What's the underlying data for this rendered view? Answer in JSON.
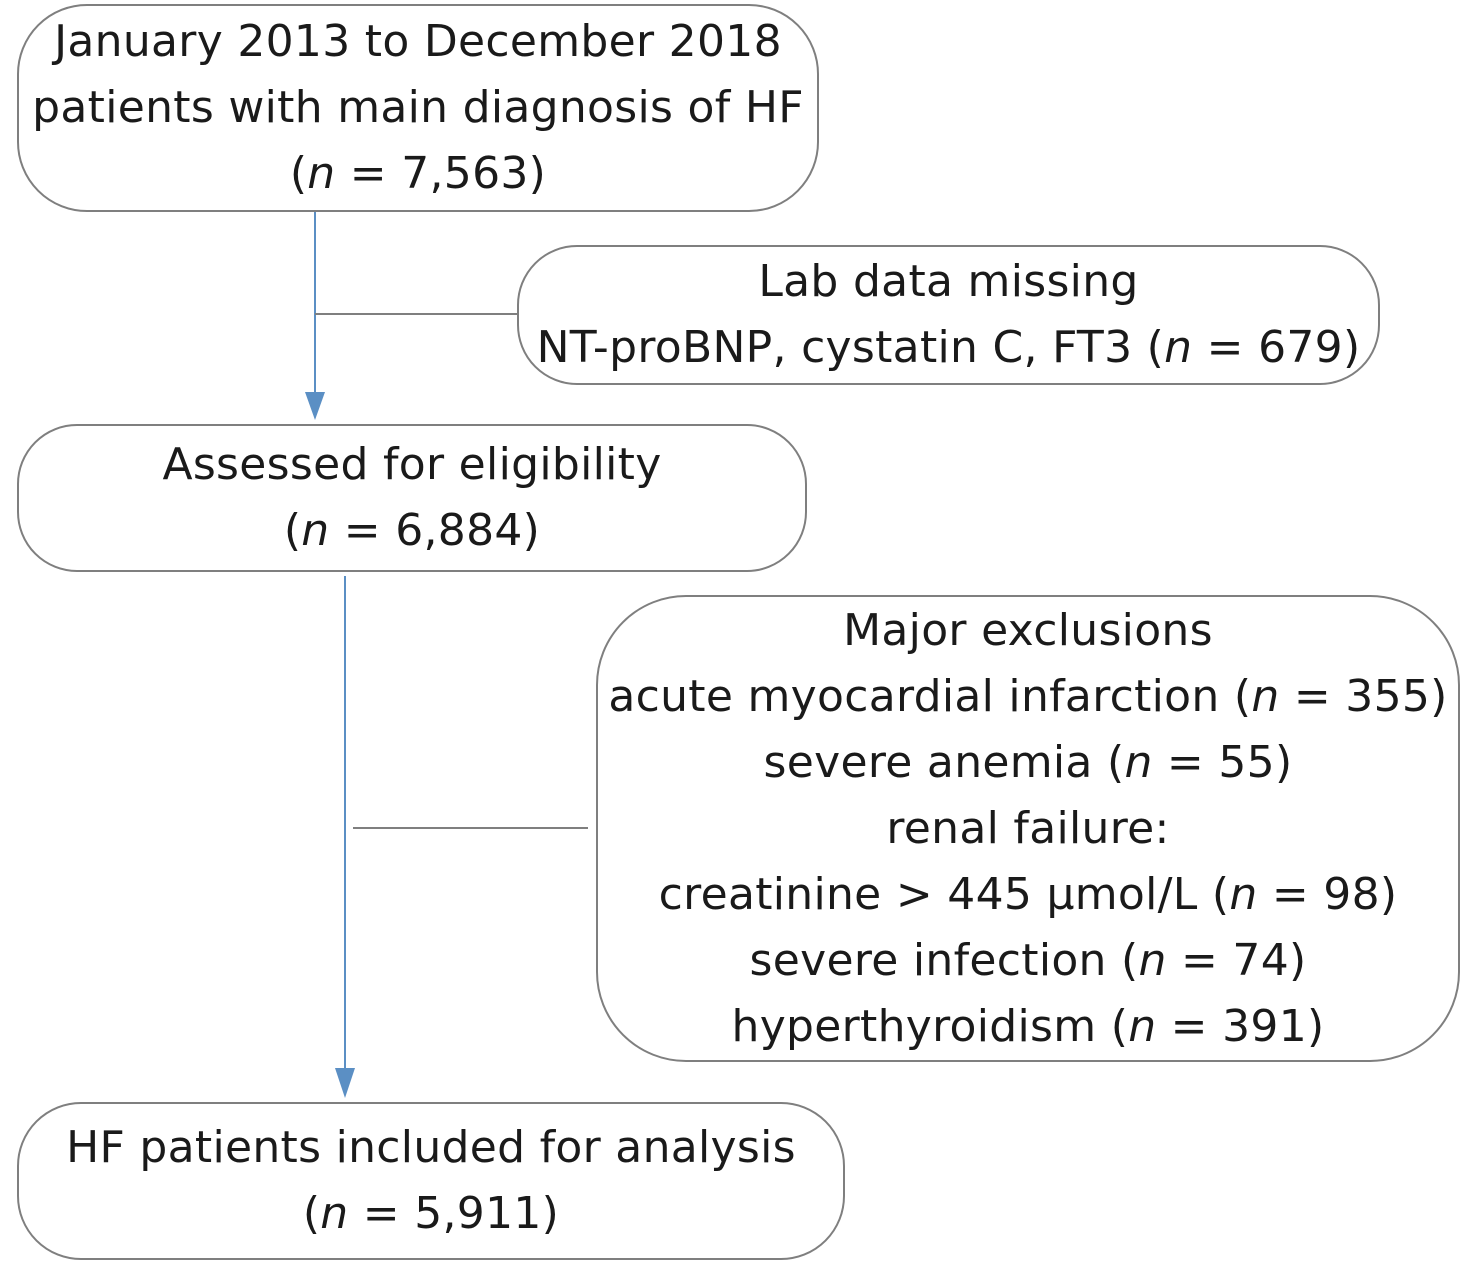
{
  "flowchart": {
    "start_box": {
      "lines": [
        "January 2013 to December 2018",
        "patients with main diagnosis of HF"
      ],
      "count": {
        "open": "(",
        "var": "n",
        "rest": " = 7,563)"
      }
    },
    "lab_missing_box": {
      "title": "Lab data missing",
      "detail_prefix": "NT-proBNP, cystatin C, FT3 (",
      "var": "n",
      "detail_suffix": " = 679)"
    },
    "eligibility_box": {
      "title": "Assessed for eligibility",
      "count": {
        "open": "(",
        "var": "n",
        "rest": " = 6,884)"
      }
    },
    "exclusions_box": {
      "title": "Major exclusions",
      "items": [
        {
          "prefix": "acute myocardial infarction (",
          "var": "n",
          "suffix": " = 355)"
        },
        {
          "prefix": "severe anemia (",
          "var": "n",
          "suffix": " = 55)"
        },
        {
          "label": "renal failure:"
        },
        {
          "prefix": "creatinine > 445 µmol/L (",
          "var": "n",
          "suffix": " = 98)"
        },
        {
          "prefix": "severe infection (",
          "var": "n",
          "suffix": " = 74)"
        },
        {
          "prefix": "hyperthyroidism (",
          "var": "n",
          "suffix": " = 391)"
        }
      ]
    },
    "final_box": {
      "title": "HF patients included for analysis",
      "count": {
        "open": "(",
        "var": "n",
        "rest": " = 5,911)"
      }
    },
    "colors": {
      "box_border": "#7f7f7f",
      "arrow": "#5b8fc4",
      "connector": "#7f7f7f"
    }
  }
}
